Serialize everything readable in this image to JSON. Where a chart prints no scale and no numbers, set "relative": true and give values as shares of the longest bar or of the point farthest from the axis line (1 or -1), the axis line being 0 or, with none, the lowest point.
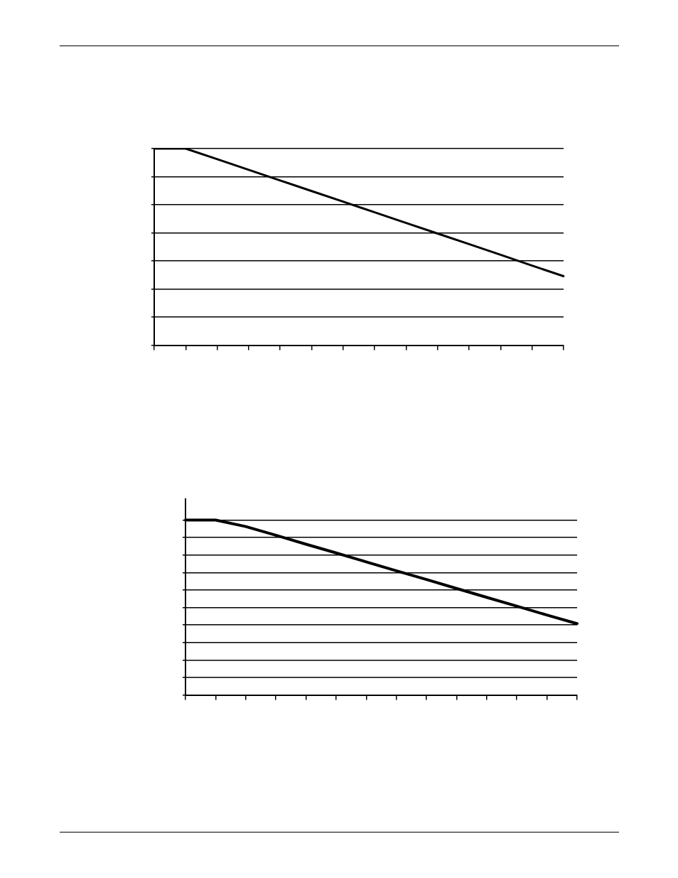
{
  "chart_data": [
    {
      "type": "line",
      "relative": true,
      "grid": "y",
      "legend": false,
      "marker": "none",
      "line_style": "solid",
      "categories": [
        null,
        null,
        null,
        null,
        null,
        null,
        null,
        null,
        null,
        null,
        null,
        null,
        null,
        null
      ],
      "series": [
        {
          "color": "#000000",
          "values": [
            1,
            1,
            0.946,
            0.892,
            0.838,
            0.784,
            0.73,
            0.676,
            0.622,
            0.568,
            0.514,
            0.46,
            0.405,
            0.351
          ]
        }
      ]
    },
    {
      "type": "line",
      "relative": true,
      "grid": "y",
      "legend": false,
      "marker": "none",
      "line_style": "solid",
      "categories": [
        null,
        null,
        null,
        null,
        null,
        null,
        null,
        null,
        null,
        null,
        null,
        null,
        null,
        null
      ],
      "series": [
        {
          "color": "#000000",
          "values": [
            1,
            1,
            0.963,
            0.913,
            0.862,
            0.812,
            0.761,
            0.71,
            0.66,
            0.609,
            0.558,
            0.508,
            0.457,
            0.408
          ]
        }
      ]
    }
  ]
}
